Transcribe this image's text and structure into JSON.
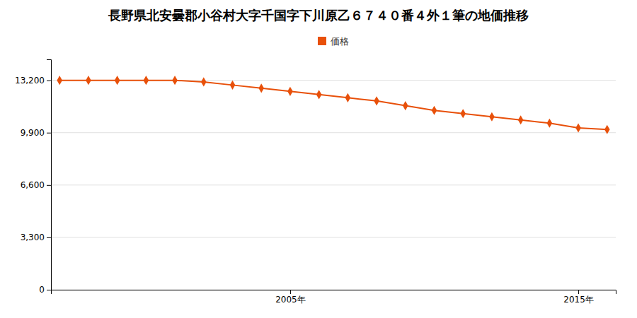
{
  "chart_data": {
    "type": "line",
    "title": "長野県北安曇郡小谷村大字千国字下川原乙６７４０番４外１筆の地価推移",
    "x": [
      1997,
      1998,
      1999,
      2000,
      2001,
      2002,
      2003,
      2004,
      2005,
      2006,
      2007,
      2008,
      2009,
      2010,
      2011,
      2012,
      2013,
      2014,
      2015,
      2016
    ],
    "series": [
      {
        "name": "価格",
        "color": "#e8500a",
        "marker": "diamond",
        "line_style": "solid",
        "values": [
          13200,
          13200,
          13200,
          13200,
          13200,
          13100,
          12900,
          12700,
          12500,
          12300,
          12100,
          11900,
          11600,
          11300,
          11100,
          10900,
          10700,
          10500,
          10200,
          10100
        ]
      }
    ],
    "xlim": [
      1996.7,
      2016.3
    ],
    "xticks": [
      {
        "value": 2005,
        "label": "2005年"
      },
      {
        "value": 2015,
        "label": "2015年"
      }
    ],
    "ylim": [
      0,
      14520
    ],
    "yticks": [
      0,
      {
        "value": 3300,
        "label": "3,300"
      },
      {
        "value": 6600,
        "label": "6,600"
      },
      {
        "value": 9900,
        "label": "9,900"
      },
      {
        "value": 13200,
        "label": "13,200"
      }
    ],
    "grid": true,
    "legend": "top"
  }
}
